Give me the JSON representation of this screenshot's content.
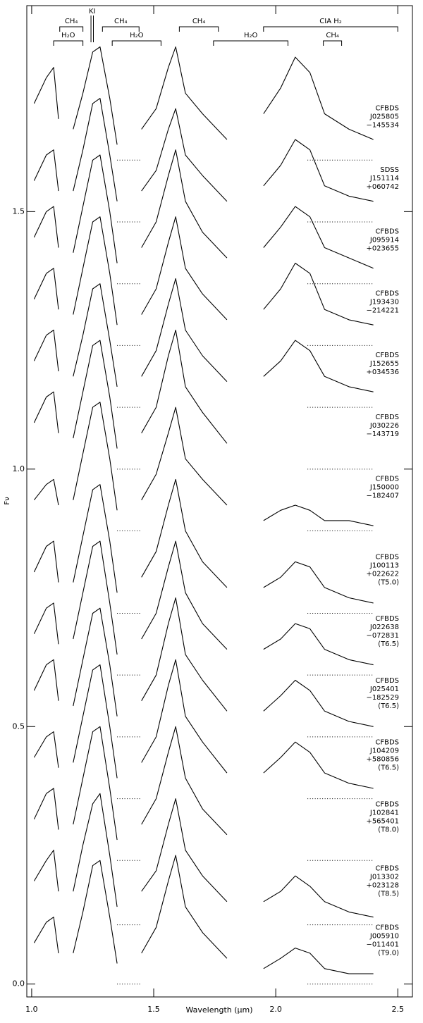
{
  "chart_data": {
    "type": "line",
    "x_label": "Wavelength (μm)",
    "y_label": "Fν",
    "xlim": [
      0.98,
      2.56
    ],
    "ylim": [
      -0.025,
      1.9
    ],
    "xticks": [
      {
        "value": 1.0,
        "label": "1.0"
      },
      1.5,
      {
        "value": 2.0,
        "label": "2.0"
      },
      2.5
    ],
    "yticks": [
      {
        "value": 0.0,
        "label": "0.0"
      },
      0.5,
      {
        "value": 1.0,
        "label": "1.0"
      },
      1.5
    ],
    "color": "#000000",
    "dotted_x": [
      [
        1.35,
        1.45
      ],
      [
        2.13,
        2.4
      ]
    ],
    "features_upper": [
      {
        "text": "CH₄",
        "range": [
          1.115,
          1.21
        ]
      },
      {
        "text": "CH₄",
        "range": [
          1.29,
          1.44
        ]
      },
      {
        "text": "CH₄",
        "range": [
          1.605,
          1.765
        ]
      },
      {
        "text": "CIA H₂",
        "range": [
          1.95,
          2.5
        ]
      }
    ],
    "features_lower": [
      {
        "text": "H₂O",
        "range": [
          1.09,
          1.21
        ]
      },
      {
        "text": "H₂O",
        "range": [
          1.33,
          1.53
        ]
      },
      {
        "text": "H₂O",
        "range": [
          1.745,
          2.05
        ]
      },
      {
        "text": "CH₄",
        "range": [
          2.195,
          2.27
        ]
      }
    ],
    "ki": {
      "text": "KI",
      "lines": [
        1.243,
        1.253
      ]
    },
    "x": [
      1.01,
      1.06,
      1.09,
      1.11,
      1.14,
      1.17,
      1.21,
      1.25,
      1.28,
      1.32,
      1.35,
      1.4,
      1.45,
      1.51,
      1.56,
      1.59,
      1.63,
      1.7,
      1.8,
      1.88,
      1.95,
      2.02,
      2.08,
      2.14,
      2.2,
      2.3,
      2.4
    ],
    "series": [
      {
        "label": [
          "CFBDS",
          "J025805",
          "−145534"
        ],
        "offset": 1.6,
        "values": [
          1.71,
          1.76,
          1.78,
          1.68,
          null,
          1.66,
          1.73,
          1.81,
          1.82,
          1.72,
          1.63,
          null,
          1.66,
          1.7,
          1.78,
          1.82,
          1.73,
          1.69,
          1.64,
          null,
          1.69,
          1.74,
          1.8,
          1.77,
          1.69,
          1.66,
          1.64
        ]
      },
      {
        "label": [
          "SDSS",
          "J151114",
          "+060742"
        ],
        "offset": 1.48,
        "values": [
          1.56,
          1.61,
          1.62,
          1.54,
          null,
          1.54,
          1.62,
          1.71,
          1.72,
          1.61,
          1.52,
          null,
          1.54,
          1.58,
          1.66,
          1.7,
          1.61,
          1.57,
          1.52,
          null,
          1.55,
          1.59,
          1.64,
          1.62,
          1.55,
          1.53,
          1.52
        ]
      },
      {
        "label": [
          "CFBDS",
          "J095914",
          "+023655"
        ],
        "offset": 1.36,
        "values": [
          1.45,
          1.5,
          1.51,
          1.43,
          null,
          1.42,
          1.51,
          1.6,
          1.61,
          1.5,
          1.4,
          null,
          1.43,
          1.48,
          1.57,
          1.62,
          1.52,
          1.46,
          1.41,
          null,
          1.43,
          1.47,
          1.51,
          1.49,
          1.43,
          1.41,
          1.39
        ]
      },
      {
        "label": [
          "CFBDS",
          "J193430",
          "−214221"
        ],
        "offset": 1.24,
        "values": [
          1.33,
          1.38,
          1.39,
          1.31,
          null,
          1.3,
          1.39,
          1.48,
          1.49,
          1.38,
          1.28,
          null,
          1.3,
          1.35,
          1.44,
          1.49,
          1.39,
          1.34,
          1.29,
          null,
          1.31,
          1.35,
          1.4,
          1.38,
          1.31,
          1.29,
          1.28
        ]
      },
      {
        "label": [
          "CFBDS",
          "J152655",
          "+034536"
        ],
        "offset": 1.12,
        "values": [
          1.21,
          1.26,
          1.27,
          1.19,
          null,
          1.18,
          1.26,
          1.35,
          1.36,
          1.25,
          1.16,
          null,
          1.18,
          1.23,
          1.32,
          1.37,
          1.27,
          1.22,
          1.17,
          null,
          1.18,
          1.21,
          1.25,
          1.23,
          1.18,
          1.16,
          1.15
        ]
      },
      {
        "label": [
          "CFBDS",
          "J030226",
          "−143719"
        ],
        "offset": 1.0,
        "values": [
          1.09,
          1.14,
          1.15,
          1.07,
          null,
          1.06,
          1.15,
          1.24,
          1.25,
          1.14,
          1.04,
          null,
          1.07,
          1.12,
          1.22,
          1.27,
          1.16,
          1.11,
          1.05,
          null,
          null,
          null,
          null,
          null,
          null,
          null,
          null
        ]
      },
      {
        "label": [
          "CFBDS",
          "J150000",
          "−182407"
        ],
        "offset": 0.88,
        "values": [
          0.94,
          0.97,
          0.98,
          0.93,
          null,
          0.94,
          1.03,
          1.12,
          1.13,
          1.02,
          0.92,
          null,
          0.94,
          0.99,
          1.07,
          1.12,
          1.02,
          0.98,
          0.93,
          null,
          0.9,
          0.92,
          0.93,
          0.92,
          0.9,
          0.9,
          0.89
        ]
      },
      {
        "label": [
          "CFBDS",
          "J100113",
          "+022622",
          "(T5.0)"
        ],
        "offset": 0.72,
        "values": [
          0.8,
          0.85,
          0.86,
          0.78,
          null,
          0.78,
          0.87,
          0.96,
          0.97,
          0.86,
          0.76,
          null,
          0.79,
          0.84,
          0.93,
          0.98,
          0.88,
          0.82,
          0.77,
          null,
          0.77,
          0.79,
          0.82,
          0.81,
          0.77,
          0.75,
          0.74
        ]
      },
      {
        "label": [
          "CFBDS",
          "J022638",
          "−072831",
          "(T6.5)"
        ],
        "offset": 0.6,
        "values": [
          0.68,
          0.73,
          0.74,
          0.66,
          null,
          0.67,
          0.76,
          0.85,
          0.86,
          0.74,
          0.64,
          null,
          0.67,
          0.72,
          0.81,
          0.86,
          0.76,
          0.7,
          0.65,
          null,
          0.65,
          0.67,
          0.7,
          0.69,
          0.65,
          0.63,
          0.62
        ]
      },
      {
        "label": [
          "CFBDS",
          "J025401",
          "−182529",
          "(T6.5)"
        ],
        "offset": 0.48,
        "values": [
          0.57,
          0.62,
          0.63,
          0.55,
          null,
          0.54,
          0.63,
          0.72,
          0.73,
          0.62,
          0.52,
          null,
          0.55,
          0.6,
          0.7,
          0.75,
          0.64,
          0.59,
          0.53,
          null,
          0.53,
          0.56,
          0.59,
          0.57,
          0.53,
          0.51,
          0.5
        ]
      },
      {
        "label": [
          "CFBDS",
          "J104209",
          "+580856",
          "(T6.5)"
        ],
        "offset": 0.36,
        "values": [
          0.44,
          0.48,
          0.49,
          0.42,
          null,
          0.43,
          0.52,
          0.61,
          0.62,
          0.5,
          0.4,
          null,
          0.43,
          0.48,
          0.58,
          0.63,
          0.52,
          0.47,
          0.41,
          null,
          0.41,
          0.44,
          0.47,
          0.45,
          0.41,
          0.39,
          0.38
        ]
      },
      {
        "label": [
          "CFBDS",
          "J102841",
          "+565401",
          "(T8.0)"
        ],
        "offset": 0.24,
        "values": [
          0.32,
          0.37,
          0.38,
          0.3,
          null,
          0.31,
          0.4,
          0.49,
          0.5,
          0.38,
          0.28,
          null,
          0.31,
          0.36,
          0.45,
          0.5,
          0.4,
          0.34,
          0.29,
          null,
          null,
          null,
          null,
          null,
          null,
          null,
          null
        ]
      },
      {
        "label": [
          "CFBDS",
          "J013302",
          "+023128",
          "(T8.5)"
        ],
        "offset": 0.115,
        "values": [
          0.2,
          0.24,
          0.26,
          0.18,
          null,
          0.18,
          0.27,
          0.35,
          0.37,
          0.25,
          0.15,
          null,
          0.18,
          0.22,
          0.31,
          0.36,
          0.26,
          0.21,
          0.16,
          null,
          0.16,
          0.18,
          0.21,
          0.19,
          0.16,
          0.14,
          0.13
        ]
      },
      {
        "label": [
          "CFBDS",
          "J005910",
          "−011401",
          "(T9.0)"
        ],
        "offset": 0,
        "values": [
          0.08,
          0.12,
          0.13,
          0.06,
          null,
          0.06,
          0.14,
          0.23,
          0.24,
          0.13,
          0.04,
          null,
          0.06,
          0.11,
          0.2,
          0.25,
          0.15,
          0.1,
          0.05,
          null,
          0.03,
          0.05,
          0.07,
          0.06,
          0.03,
          0.02,
          0.02
        ]
      }
    ]
  }
}
